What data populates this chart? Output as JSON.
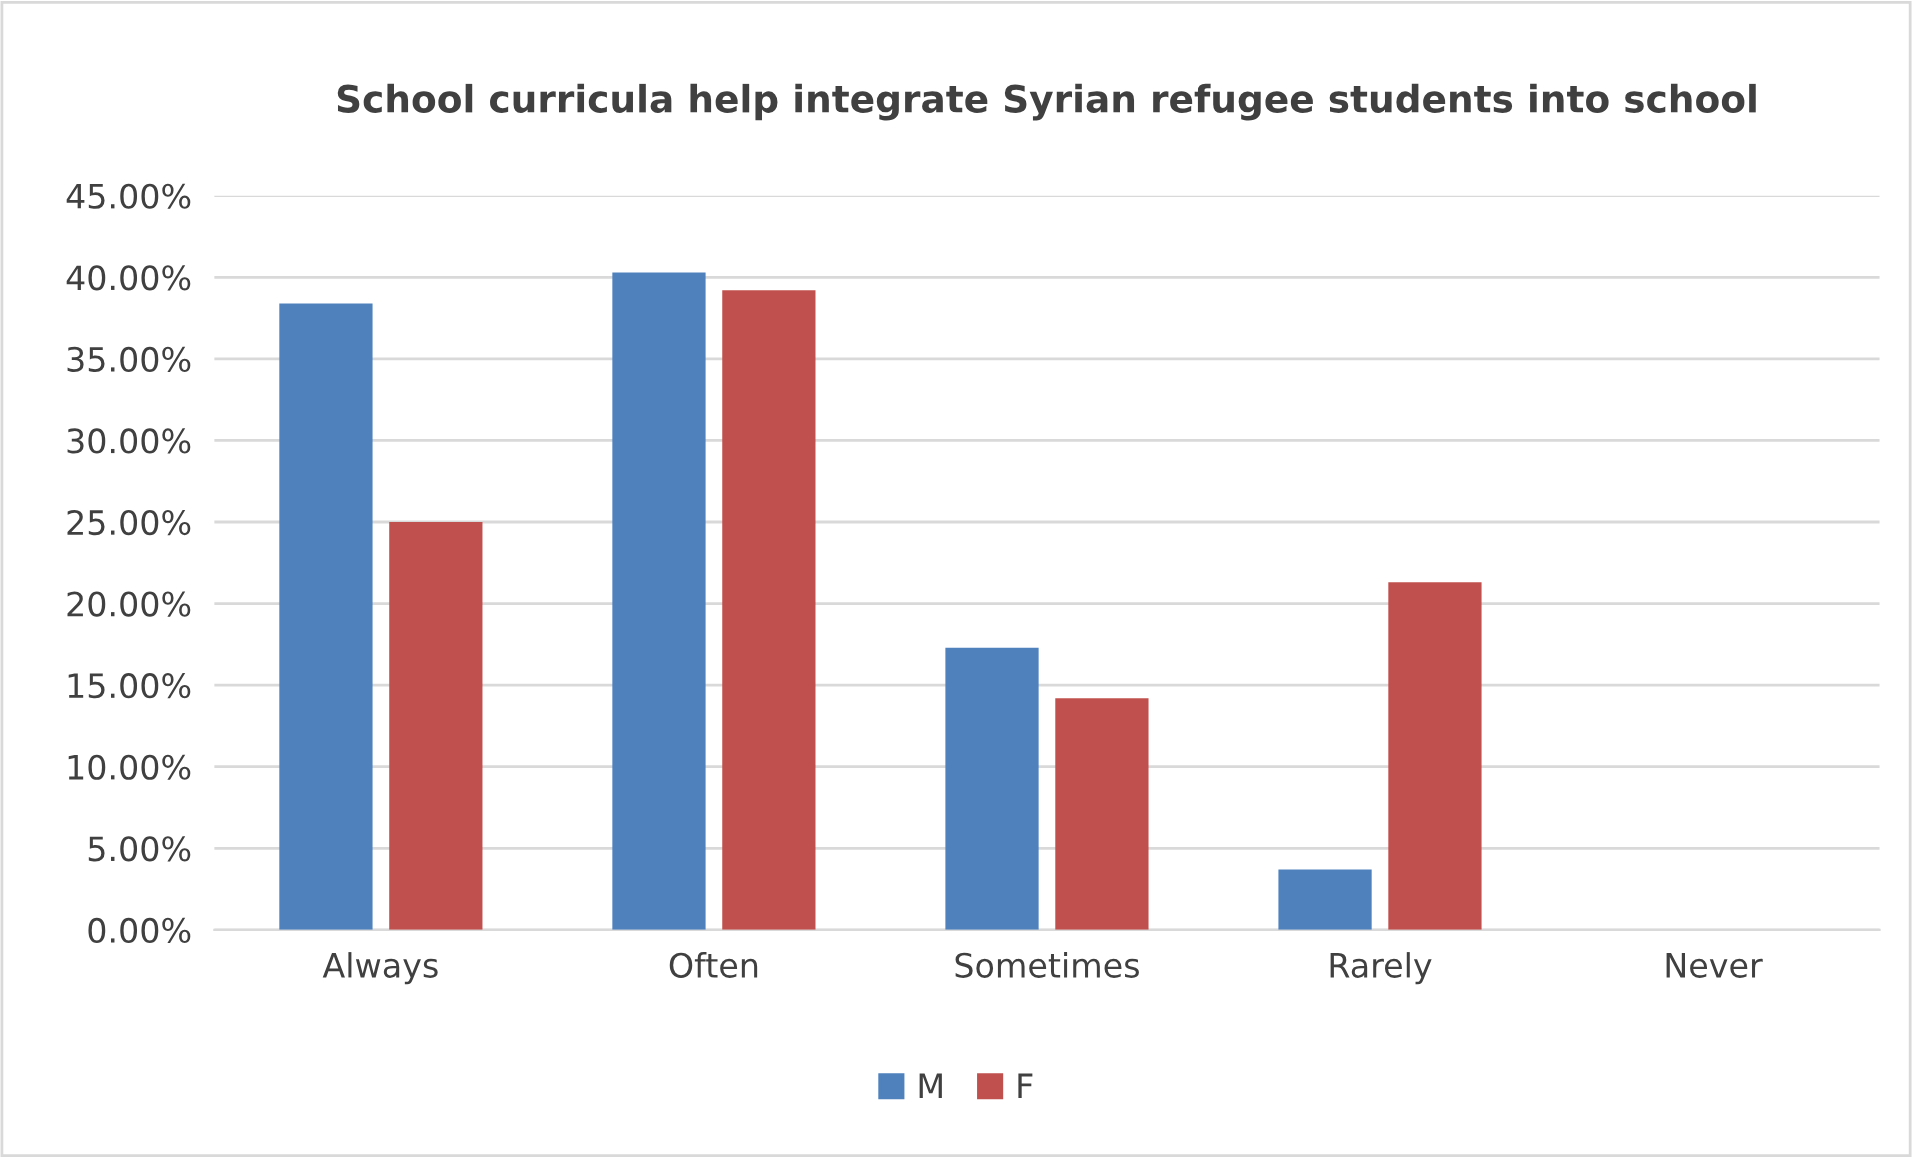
{
  "chart_data": {
    "type": "bar",
    "title": "School curricula help integrate Syrian refugee students into school",
    "categories": [
      "Always",
      "Often",
      "Sometimes",
      "Rarely",
      "Never"
    ],
    "series": [
      {
        "name": "M",
        "color": "#4f81bd",
        "values": [
          38.4,
          40.3,
          17.3,
          3.7,
          0
        ]
      },
      {
        "name": "F",
        "color": "#c0504d",
        "values": [
          25.0,
          39.2,
          14.2,
          21.3,
          0
        ]
      }
    ],
    "ylim": [
      0,
      45
    ],
    "yticks": [
      {
        "value": 0,
        "label": "0.00%"
      },
      {
        "value": 5,
        "label": "5.00%"
      },
      {
        "value": 10,
        "label": "10.00%"
      },
      {
        "value": 15,
        "label": "15.00%"
      },
      {
        "value": 20,
        "label": "20.00%"
      },
      {
        "value": 25,
        "label": "25.00%"
      },
      {
        "value": 30,
        "label": "30.00%"
      },
      {
        "value": 35,
        "label": "35.00%"
      },
      {
        "value": 40,
        "label": "40.00%"
      },
      {
        "value": 45,
        "label": "45.00%"
      }
    ],
    "grid": "y",
    "legend": "bottom"
  }
}
